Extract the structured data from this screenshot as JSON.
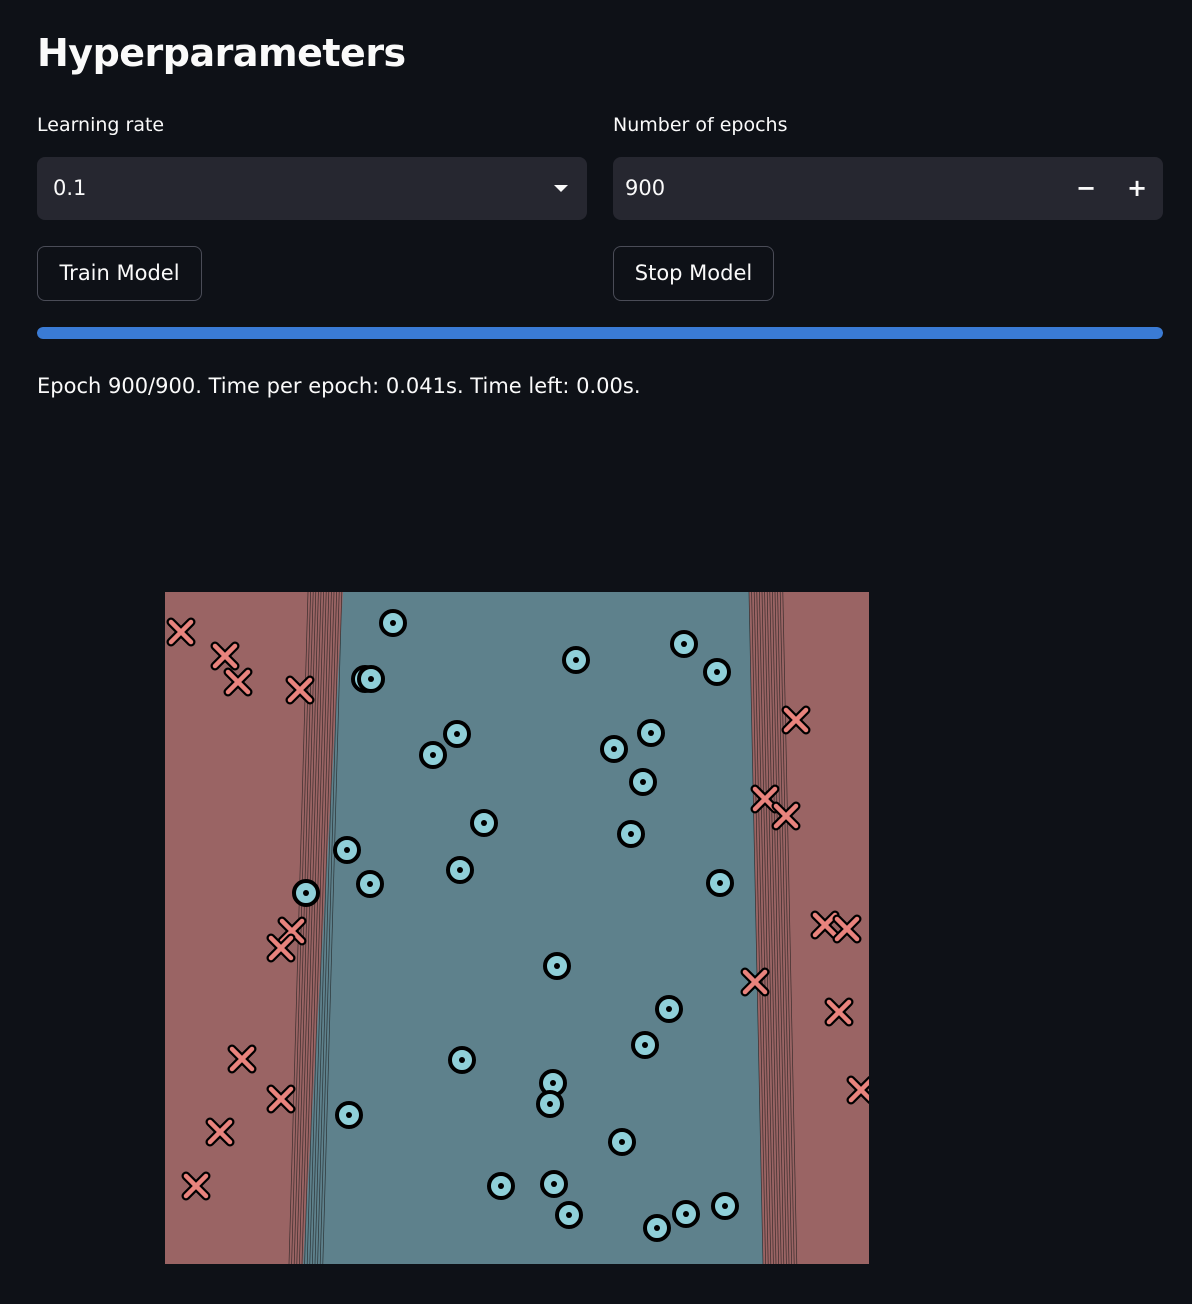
{
  "header": {
    "title": "Hyperparameters"
  },
  "learning_rate": {
    "label": "Learning rate",
    "value": "0.1"
  },
  "epochs": {
    "label": "Number of epochs",
    "value": "900",
    "decrement": "−",
    "increment": "+"
  },
  "buttons": {
    "train": "Train Model",
    "stop": "Stop Model"
  },
  "progress": {
    "fraction": 1.0,
    "color": "#3a7bd5"
  },
  "status_text": "Epoch 900/900. Time per epoch: 0.041s. Time left: 0.00s.",
  "plot": {
    "colors": {
      "negative_region": "#9a6464",
      "positive_region": "#5e818c",
      "cross": "#e8837d",
      "circle": "#8fcfd8",
      "outline": "#000000"
    },
    "class_markers": {
      "negative": "cross",
      "positive": "circle"
    }
  }
}
